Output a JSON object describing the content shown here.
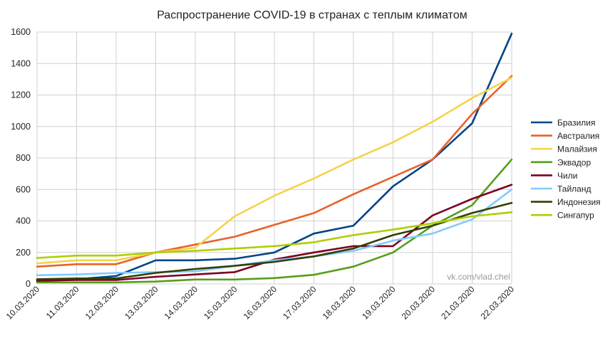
{
  "chart_data": {
    "type": "line",
    "title": "Распространение COVID-19 в странах с теплым климатом",
    "xlabel": "",
    "ylabel": "",
    "ylim": [
      0,
      1600
    ],
    "yticks": [
      0,
      200,
      400,
      600,
      800,
      1000,
      1200,
      1400,
      1600
    ],
    "grid": true,
    "legend_position": "right",
    "watermark": "vk.com/vlad.chel",
    "x": [
      "10.03.2020",
      "11.03.2020",
      "12.03.2020",
      "13.03.2020",
      "14.03.2020",
      "15.03.2020",
      "16.03.2020",
      "17.03.2020",
      "18.03.2020",
      "19.03.2020",
      "20.03.2020",
      "21.03.2020",
      "22.03.2020"
    ],
    "series": [
      {
        "name": "Бразилия",
        "color": "#004586",
        "values": [
          25,
          30,
          50,
          150,
          150,
          160,
          200,
          320,
          370,
          620,
          790,
          1020,
          1590
        ]
      },
      {
        "name": "Австралия",
        "color": "#e8622a",
        "values": [
          110,
          125,
          125,
          200,
          250,
          300,
          375,
          450,
          570,
          680,
          790,
          1080,
          1320
        ]
      },
      {
        "name": "Малайзия",
        "color": "#f5d34b",
        "values": [
          130,
          150,
          150,
          200,
          230,
          430,
          560,
          670,
          790,
          900,
          1030,
          1180,
          1310
        ]
      },
      {
        "name": "Эквадор",
        "color": "#579d1c",
        "values": [
          10,
          10,
          10,
          15,
          28,
          28,
          37,
          58,
          110,
          200,
          370,
          500,
          790
        ]
      },
      {
        "name": "Чили",
        "color": "#7e0021",
        "values": [
          20,
          25,
          25,
          45,
          60,
          75,
          155,
          200,
          240,
          240,
          435,
          540,
          630
        ]
      },
      {
        "name": "Тайланд",
        "color": "#83caff",
        "values": [
          55,
          60,
          70,
          75,
          80,
          115,
          150,
          175,
          210,
          275,
          320,
          410,
          600
        ]
      },
      {
        "name": "Индонезия",
        "color": "#314004",
        "values": [
          30,
          35,
          35,
          70,
          95,
          115,
          140,
          175,
          225,
          310,
          370,
          450,
          515
        ]
      },
      {
        "name": "Сингапур",
        "color": "#aecf00",
        "values": [
          165,
          180,
          180,
          200,
          210,
          225,
          240,
          265,
          310,
          345,
          385,
          430,
          455
        ]
      }
    ]
  }
}
